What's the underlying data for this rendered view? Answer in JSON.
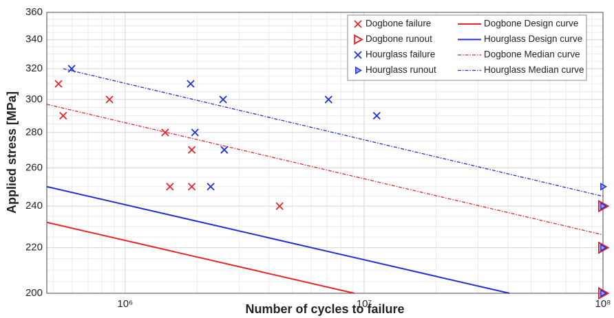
{
  "chart_data": {
    "type": "scatter",
    "xlabel": "Number of cycles to failure",
    "ylabel": "Applied stress [MPa]",
    "xscale": "log",
    "yscale": "log",
    "xlim": [
      470000,
      100000000
    ],
    "ylim": [
      200,
      360
    ],
    "xticks": [
      {
        "value": 1000000,
        "label": "10⁶"
      },
      {
        "value": 10000000,
        "label": "10⁷"
      },
      {
        "value": 100000000,
        "label": "10⁸"
      }
    ],
    "yticks": [
      200,
      220,
      240,
      260,
      280,
      300,
      320,
      340,
      360
    ],
    "grid": true,
    "legend": "upper right",
    "series": [
      {
        "name": "Dogbone failure",
        "color": "#e8232a",
        "mode": "markers",
        "marker": "x",
        "x": [
          526000,
          550000,
          860000,
          1470000,
          1900000,
          1540000,
          1900000,
          4430000
        ],
        "y": [
          310,
          290,
          300,
          280,
          270,
          250,
          250,
          240
        ]
      },
      {
        "name": "Dogbone runout",
        "color": "#e8232a",
        "mode": "markers",
        "marker": "triangle-open",
        "x": [
          100000000,
          100000000,
          100000000
        ],
        "y": [
          240,
          220,
          200
        ]
      },
      {
        "name": "Hourglass failure",
        "color": "#1f2fd0",
        "mode": "markers",
        "marker": "x",
        "x": [
          597000,
          1880000,
          1960000,
          2570000,
          2600000,
          2280000,
          7100000,
          11300000
        ],
        "y": [
          320,
          310,
          280,
          300,
          270,
          250,
          300,
          290
        ]
      },
      {
        "name": "Hourglass runout",
        "color": "#1f2fd0",
        "mode": "markers",
        "marker": "triangle-small",
        "x": [
          100000000,
          100000000,
          100000000,
          100000000
        ],
        "y": [
          250,
          240,
          220,
          200
        ]
      },
      {
        "name": "Dogbone Design curve",
        "color": "#e8232a",
        "mode": "line",
        "dash": "solid",
        "x": [
          470000,
          9100000
        ],
        "y": [
          232,
          200
        ]
      },
      {
        "name": "Hourglass Design curve",
        "color": "#1f2fd0",
        "mode": "line",
        "dash": "solid",
        "x": [
          470000,
          40600000
        ],
        "y": [
          250,
          200
        ]
      },
      {
        "name": "Dogbone Median curve",
        "color": "#e8232a",
        "mode": "line",
        "dash": "dashdot",
        "x": [
          470000,
          100000000
        ],
        "y": [
          297,
          226
        ]
      },
      {
        "name": "Hourglass Median curve",
        "color": "#1f2fd0",
        "mode": "line",
        "dash": "dashdot",
        "x": [
          550000,
          100000000
        ],
        "y": [
          320,
          245
        ]
      }
    ]
  }
}
